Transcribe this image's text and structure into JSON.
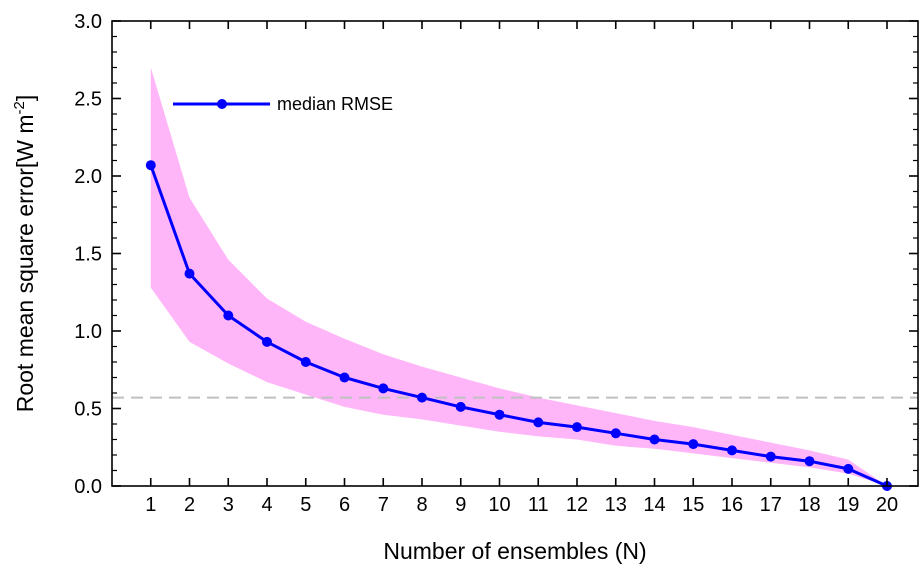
{
  "chart_data": {
    "type": "line",
    "xlabel": "Number of ensembles (N)",
    "ylabel": {
      "main": "Root mean square error[W m",
      "superscript": "-2",
      "close": "]"
    },
    "xlim": [
      0,
      20.8
    ],
    "ylim": [
      0,
      3.0
    ],
    "x_ticks": [
      "1",
      "2",
      "3",
      "4",
      "5",
      "6",
      "7",
      "8",
      "9",
      "10",
      "11",
      "12",
      "13",
      "14",
      "15",
      "16",
      "17",
      "18",
      "19",
      "20"
    ],
    "y_ticks": [
      "0.0",
      "0.5",
      "1.0",
      "1.5",
      "2.0",
      "2.5",
      "3.0"
    ],
    "x": [
      1,
      2,
      3,
      4,
      5,
      6,
      7,
      8,
      9,
      10,
      11,
      12,
      13,
      14,
      15,
      16,
      17,
      18,
      19,
      20
    ],
    "series": [
      {
        "name": "median RMSE",
        "color": "#0000ff",
        "values": [
          2.07,
          1.37,
          1.1,
          0.93,
          0.8,
          0.7,
          0.63,
          0.57,
          0.51,
          0.46,
          0.41,
          0.38,
          0.34,
          0.3,
          0.27,
          0.23,
          0.19,
          0.16,
          0.11,
          0.0
        ]
      }
    ],
    "band": {
      "color": "#ffb6f8",
      "upper": [
        2.7,
        1.86,
        1.46,
        1.21,
        1.06,
        0.95,
        0.85,
        0.77,
        0.7,
        0.63,
        0.57,
        0.52,
        0.47,
        0.42,
        0.38,
        0.33,
        0.28,
        0.23,
        0.17,
        0.0
      ],
      "lower": [
        1.28,
        0.93,
        0.79,
        0.67,
        0.59,
        0.51,
        0.46,
        0.43,
        0.39,
        0.35,
        0.32,
        0.3,
        0.26,
        0.24,
        0.21,
        0.18,
        0.15,
        0.12,
        0.08,
        0.0
      ]
    },
    "reference_line": {
      "y": 0.57,
      "color": "#c0c0c0",
      "style": "dashed"
    },
    "legend": {
      "placement": "top-left"
    },
    "grid": false
  }
}
